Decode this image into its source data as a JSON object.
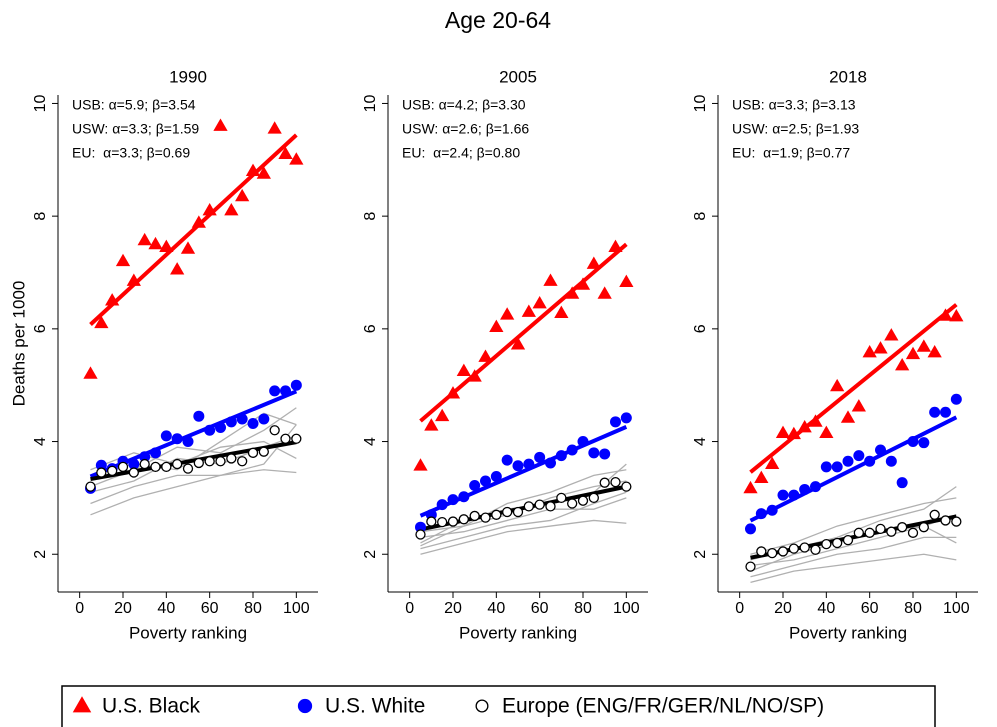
{
  "title": "Age 20-64",
  "chart_data": [
    {
      "type": "scatter",
      "title": "1990",
      "xlabel": "Poverty ranking",
      "ylabel": "Deaths per 1000",
      "xlim": [
        -10,
        110
      ],
      "ylim": [
        1.33,
        10.15
      ],
      "xticks": [
        0,
        20,
        40,
        60,
        80,
        100
      ],
      "yticks": [
        2,
        4,
        6,
        8,
        10
      ],
      "annotations": [
        "USB: α=5.9; β=3.54",
        "USW: α=3.3; β=1.59",
        "EU:  α=3.3; β=0.69"
      ],
      "x": [
        5,
        10,
        15,
        20,
        25,
        30,
        35,
        40,
        45,
        50,
        55,
        60,
        65,
        70,
        75,
        80,
        85,
        90,
        95,
        100
      ],
      "series": [
        {
          "name": "U.S. Black",
          "color": "#ff0000",
          "marker": "triangle",
          "alpha": 5.9,
          "beta": 3.54,
          "values": [
            5.2,
            6.1,
            6.5,
            7.2,
            6.85,
            7.57,
            7.5,
            7.45,
            7.05,
            7.42,
            7.88,
            8.1,
            9.6,
            8.1,
            8.35,
            8.8,
            8.75,
            9.55,
            9.1,
            9.0
          ]
        },
        {
          "name": "U.S. White",
          "color": "#0000ff",
          "marker": "circle",
          "alpha": 3.3,
          "beta": 1.59,
          "values": [
            3.17,
            3.58,
            3.52,
            3.65,
            3.6,
            3.73,
            3.8,
            4.1,
            4.05,
            4.0,
            4.45,
            4.2,
            4.25,
            4.35,
            4.4,
            4.32,
            4.4,
            4.9,
            4.9,
            5.0
          ]
        },
        {
          "name": "Europe (ENG/FR/GER/NL/NO/SP)",
          "color": "#000000",
          "marker": "open-circle",
          "alpha": 3.3,
          "beta": 0.69,
          "values": [
            3.2,
            3.45,
            3.48,
            3.55,
            3.45,
            3.6,
            3.55,
            3.55,
            3.6,
            3.52,
            3.62,
            3.65,
            3.65,
            3.7,
            3.65,
            3.8,
            3.82,
            4.2,
            4.05,
            4.05
          ]
        }
      ],
      "country_lines": {
        "color": "#b0b0b0",
        "x": [
          5,
          25,
          45,
          65,
          85,
          100
        ],
        "values": [
          [
            2.7,
            3.0,
            3.2,
            3.4,
            3.6,
            4.3
          ],
          [
            2.9,
            3.2,
            3.4,
            3.4,
            3.5,
            3.45
          ],
          [
            3.2,
            3.5,
            3.9,
            3.8,
            4.2,
            4.6
          ],
          [
            3.5,
            3.8,
            3.6,
            3.9,
            4.0,
            3.7
          ],
          [
            3.1,
            3.3,
            3.7,
            3.6,
            3.9,
            4.1
          ],
          [
            3.4,
            3.6,
            3.5,
            4.0,
            4.5,
            4.3
          ]
        ]
      }
    },
    {
      "type": "scatter",
      "title": "2005",
      "xlabel": "Poverty ranking",
      "xlim": [
        -10,
        110
      ],
      "ylim": [
        1.33,
        10.15
      ],
      "xticks": [
        0,
        20,
        40,
        60,
        80,
        100
      ],
      "yticks": [
        2,
        4,
        6,
        8,
        10
      ],
      "annotations": [
        "USB: α=4.2; β=3.30",
        "USW: α=2.6; β=1.66",
        "EU:  α=2.4; β=0.80"
      ],
      "x": [
        5,
        10,
        15,
        20,
        25,
        30,
        35,
        40,
        45,
        50,
        55,
        60,
        65,
        70,
        75,
        80,
        85,
        90,
        95,
        100
      ],
      "series": [
        {
          "name": "U.S. Black",
          "color": "#ff0000",
          "marker": "triangle",
          "alpha": 4.2,
          "beta": 3.3,
          "values": [
            3.57,
            4.28,
            4.45,
            4.85,
            5.25,
            5.15,
            5.5,
            6.03,
            6.25,
            5.72,
            6.3,
            6.45,
            6.85,
            6.28,
            6.62,
            6.78,
            7.15,
            6.62,
            7.45,
            6.83
          ]
        },
        {
          "name": "U.S. White",
          "color": "#0000ff",
          "marker": "circle",
          "alpha": 2.6,
          "beta": 1.66,
          "values": [
            2.48,
            2.7,
            2.88,
            2.97,
            3.02,
            3.22,
            3.3,
            3.38,
            3.67,
            3.57,
            3.6,
            3.72,
            3.62,
            3.75,
            3.85,
            4.0,
            3.8,
            3.78,
            4.35,
            4.42
          ]
        },
        {
          "name": "Europe (ENG/FR/GER/NL/NO/SP)",
          "color": "#000000",
          "marker": "open-circle",
          "alpha": 2.4,
          "beta": 0.8,
          "values": [
            2.35,
            2.58,
            2.57,
            2.58,
            2.62,
            2.68,
            2.65,
            2.7,
            2.75,
            2.75,
            2.85,
            2.88,
            2.85,
            3.0,
            2.9,
            2.95,
            3.0,
            3.27,
            3.28,
            3.2
          ]
        }
      ],
      "country_lines": {
        "color": "#b0b0b0",
        "x": [
          5,
          25,
          45,
          65,
          85,
          100
        ],
        "values": [
          [
            2.0,
            2.2,
            2.4,
            2.5,
            2.6,
            2.55
          ],
          [
            2.1,
            2.3,
            2.5,
            2.6,
            2.9,
            3.1
          ],
          [
            2.2,
            2.6,
            2.8,
            2.9,
            3.1,
            3.6
          ],
          [
            2.4,
            2.5,
            2.9,
            3.1,
            3.4,
            3.5
          ],
          [
            2.3,
            2.4,
            2.6,
            2.8,
            2.8,
            3.0
          ],
          [
            2.15,
            2.5,
            2.7,
            3.0,
            3.2,
            3.3
          ]
        ]
      }
    },
    {
      "type": "scatter",
      "title": "2018",
      "xlabel": "Poverty ranking",
      "xlim": [
        -10,
        110
      ],
      "ylim": [
        1.33,
        10.15
      ],
      "xticks": [
        0,
        20,
        40,
        60,
        80,
        100
      ],
      "yticks": [
        2,
        4,
        6,
        8,
        10
      ],
      "annotations": [
        "USB: α=3.3; β=3.13",
        "USW: α=2.5; β=1.93",
        "EU:  α=1.9; β=0.77"
      ],
      "x": [
        5,
        10,
        15,
        20,
        25,
        30,
        35,
        40,
        45,
        50,
        55,
        60,
        65,
        70,
        75,
        80,
        85,
        90,
        95,
        100
      ],
      "series": [
        {
          "name": "U.S. Black",
          "color": "#ff0000",
          "marker": "triangle",
          "alpha": 3.3,
          "beta": 3.13,
          "values": [
            3.17,
            3.35,
            3.6,
            4.15,
            4.13,
            4.25,
            4.35,
            4.15,
            4.98,
            4.42,
            4.62,
            5.58,
            5.65,
            5.88,
            5.35,
            5.55,
            5.68,
            5.58,
            6.23,
            6.22
          ]
        },
        {
          "name": "U.S. White",
          "color": "#0000ff",
          "marker": "circle",
          "alpha": 2.5,
          "beta": 1.93,
          "values": [
            2.45,
            2.72,
            2.78,
            3.05,
            3.05,
            3.15,
            3.2,
            3.55,
            3.55,
            3.65,
            3.75,
            3.65,
            3.85,
            3.65,
            3.27,
            4.0,
            3.98,
            4.52,
            4.52,
            4.75
          ]
        },
        {
          "name": "Europe (ENG/FR/GER/NL/NO/SP)",
          "color": "#000000",
          "marker": "open-circle",
          "alpha": 1.9,
          "beta": 0.77,
          "values": [
            1.78,
            2.05,
            2.02,
            2.05,
            2.1,
            2.12,
            2.08,
            2.18,
            2.2,
            2.25,
            2.38,
            2.38,
            2.45,
            2.4,
            2.48,
            2.38,
            2.48,
            2.7,
            2.6,
            2.58
          ]
        }
      ],
      "country_lines": {
        "color": "#b0b0b0",
        "x": [
          5,
          25,
          45,
          65,
          85,
          100
        ],
        "values": [
          [
            1.5,
            1.7,
            1.8,
            1.9,
            2.0,
            1.9
          ],
          [
            1.6,
            1.8,
            2.0,
            2.1,
            2.3,
            2.3
          ],
          [
            1.9,
            2.1,
            2.3,
            2.6,
            2.8,
            3.2
          ],
          [
            1.7,
            2.0,
            2.2,
            2.4,
            2.5,
            2.7
          ],
          [
            1.8,
            1.9,
            2.1,
            2.3,
            2.5,
            2.2
          ],
          [
            2.0,
            2.2,
            2.5,
            2.7,
            2.9,
            3.0
          ]
        ]
      }
    }
  ]
}
